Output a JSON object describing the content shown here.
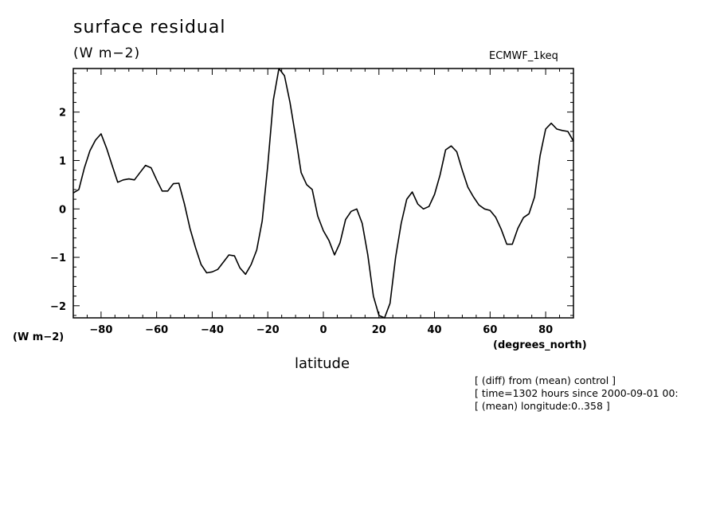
{
  "title": "surface residual",
  "units": "(W m−2)",
  "source_label": "ECMWF_1keq",
  "y_units_label": "(W m−2)",
  "x_units_label": "(degrees_north)",
  "notes": [
    "[ (diff) from (mean) control ]",
    "[ time=1302 hours since 2000-09-01 00:",
    "[ (mean) longitude:0..358 ]"
  ],
  "chart_data": {
    "type": "line",
    "title": "surface residual",
    "xlabel": "latitude",
    "ylabel": "(W m−2)",
    "xlim": [
      -90,
      90
    ],
    "ylim": [
      -2.25,
      2.9
    ],
    "x_ticks": [
      -80,
      -60,
      -40,
      -20,
      0,
      20,
      40,
      60,
      80
    ],
    "y_ticks": [
      -2,
      -1,
      0,
      1,
      2
    ],
    "grid": false,
    "series": [
      {
        "color": "#000000",
        "x": [
          -90,
          -88,
          -86,
          -84,
          -82,
          -80,
          -78,
          -76,
          -74,
          -72,
          -70,
          -68,
          -66,
          -64,
          -62,
          -60,
          -58,
          -56,
          -54,
          -52,
          -50,
          -48,
          -46,
          -44,
          -42,
          -40,
          -38,
          -36,
          -34,
          -32,
          -30,
          -28,
          -26,
          -24,
          -22,
          -20,
          -18,
          -16,
          -14,
          -12,
          -10,
          -8,
          -6,
          -4,
          -2,
          0,
          2,
          4,
          6,
          8,
          10,
          12,
          14,
          16,
          18,
          20,
          22,
          24,
          26,
          28,
          30,
          32,
          34,
          36,
          38,
          40,
          42,
          44,
          46,
          48,
          50,
          52,
          54,
          56,
          58,
          60,
          62,
          64,
          66,
          68,
          70,
          72,
          74,
          76,
          78,
          80,
          82,
          84,
          86,
          88,
          90
        ],
        "y": [
          0.33,
          0.4,
          0.85,
          1.2,
          1.42,
          1.55,
          1.25,
          0.9,
          0.55,
          0.6,
          0.62,
          0.6,
          0.75,
          0.9,
          0.85,
          0.6,
          0.37,
          0.37,
          0.52,
          0.53,
          0.1,
          -0.4,
          -0.8,
          -1.15,
          -1.32,
          -1.3,
          -1.25,
          -1.1,
          -0.95,
          -0.97,
          -1.22,
          -1.35,
          -1.15,
          -0.85,
          -0.25,
          0.9,
          2.25,
          2.9,
          2.75,
          2.2,
          1.5,
          0.75,
          0.5,
          0.4,
          -0.15,
          -0.45,
          -0.65,
          -0.95,
          -0.7,
          -0.22,
          -0.05,
          0.0,
          -0.3,
          -0.95,
          -1.8,
          -2.2,
          -2.3,
          -1.95,
          -1.0,
          -0.3,
          0.2,
          0.35,
          0.1,
          0.0,
          0.05,
          0.3,
          0.7,
          1.22,
          1.3,
          1.18,
          0.8,
          0.45,
          0.25,
          0.08,
          0.0,
          -0.03,
          -0.17,
          -0.42,
          -0.73,
          -0.73,
          -0.4,
          -0.18,
          -0.1,
          0.25,
          1.1,
          1.65,
          1.77,
          1.65,
          1.62,
          1.6,
          1.4
        ]
      }
    ]
  }
}
